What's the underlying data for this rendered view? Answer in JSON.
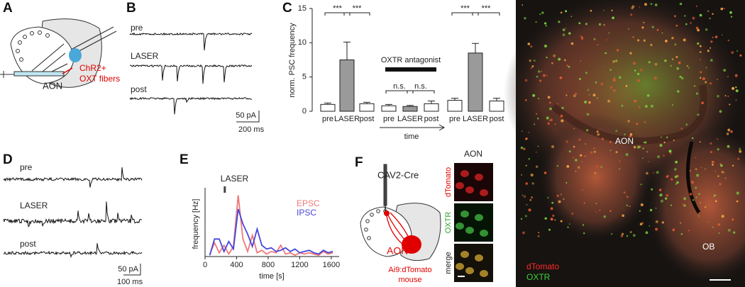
{
  "panels": {
    "a": {
      "letter": "A",
      "labels": [
        "ChR2+",
        "OXT fibers",
        "AON"
      ]
    },
    "b": {
      "letter": "B",
      "traces": [
        "pre",
        "LASER",
        "post"
      ],
      "scale": [
        "50 pA",
        "200 ms"
      ]
    },
    "c": {
      "letter": "C"
    },
    "d": {
      "letter": "D",
      "traces": [
        "pre",
        "LASER",
        "post"
      ],
      "scale": [
        "50 pA",
        "100 ms"
      ]
    },
    "e": {
      "letter": "E"
    },
    "f": {
      "letter": "F",
      "labels": [
        "CAV2-Cre",
        "AON",
        "Ai9:dTomato",
        "mouse"
      ],
      "column_title": "AON",
      "rows": [
        "dTomato",
        "OXTR",
        "merge"
      ]
    },
    "image": {
      "labels": [
        "AON",
        "OB"
      ],
      "legend": [
        "dTomato",
        "OXTR"
      ]
    }
  },
  "chart_data": [
    {
      "type": "bar",
      "ylabel": "norm. PSC frequency",
      "xlabel": "time",
      "annotation": "OXTR antagonist",
      "categories": [
        "pre",
        "LASER",
        "post",
        "pre",
        "LASER",
        "post",
        "pre",
        "LASER",
        "post"
      ],
      "values": [
        1.0,
        7.5,
        1.1,
        0.8,
        0.7,
        1.1,
        1.6,
        8.5,
        1.5
      ],
      "errors": [
        0.2,
        2.6,
        0.2,
        0.2,
        0.15,
        0.4,
        0.3,
        1.4,
        0.4
      ],
      "colors": [
        "#ffffff",
        "#9a9a9a",
        "#ffffff",
        "#ffffff",
        "#9a9a9a",
        "#ffffff",
        "#ffffff",
        "#9a9a9a",
        "#ffffff"
      ],
      "significance": [
        "***",
        "***",
        "n.s.",
        "n.s.",
        "***",
        "***"
      ],
      "ylim": [
        0,
        15
      ],
      "yticks": [
        0,
        5,
        10,
        15
      ]
    },
    {
      "type": "line",
      "xlabel": "time [s]",
      "ylabel": "frequency [Hz]",
      "annotations": [
        {
          "text": "LASER",
          "x": 250
        }
      ],
      "x": [
        60,
        120,
        180,
        240,
        300,
        360,
        420,
        480,
        540,
        600,
        660,
        720,
        780,
        840,
        900,
        960,
        1020,
        1080,
        1140,
        1200,
        1260,
        1320,
        1380,
        1440,
        1500,
        1560,
        1620
      ],
      "series": [
        {
          "name": "EPSC",
          "color": "#f07878",
          "values": [
            0.2,
            1.1,
            0.3,
            0.9,
            0.2,
            0.8,
            4.9,
            1.4,
            0.4,
            1.7,
            0.3,
            0.5,
            0.2,
            0.4,
            0.3,
            0.9,
            0.2,
            0.3,
            0.1,
            0.3,
            0.2,
            0.3,
            0.2,
            0.1,
            0.4,
            0.2,
            0.3
          ]
        },
        {
          "name": "IPSC",
          "color": "#4646dc",
          "values": [
            0.1,
            1.4,
            1.4,
            0.4,
            1.2,
            0.6,
            3.8,
            2.6,
            1.8,
            0.8,
            2.2,
            0.9,
            0.6,
            0.7,
            0.4,
            0.5,
            0.7,
            0.4,
            0.6,
            0.3,
            0.4,
            0.5,
            0.3,
            0.2,
            0.5,
            0.3,
            0.4
          ]
        }
      ],
      "xlim": [
        0,
        1700
      ],
      "xticks": [
        0,
        400,
        800,
        1200,
        1600
      ],
      "ylim": [
        0,
        5.5
      ]
    }
  ]
}
